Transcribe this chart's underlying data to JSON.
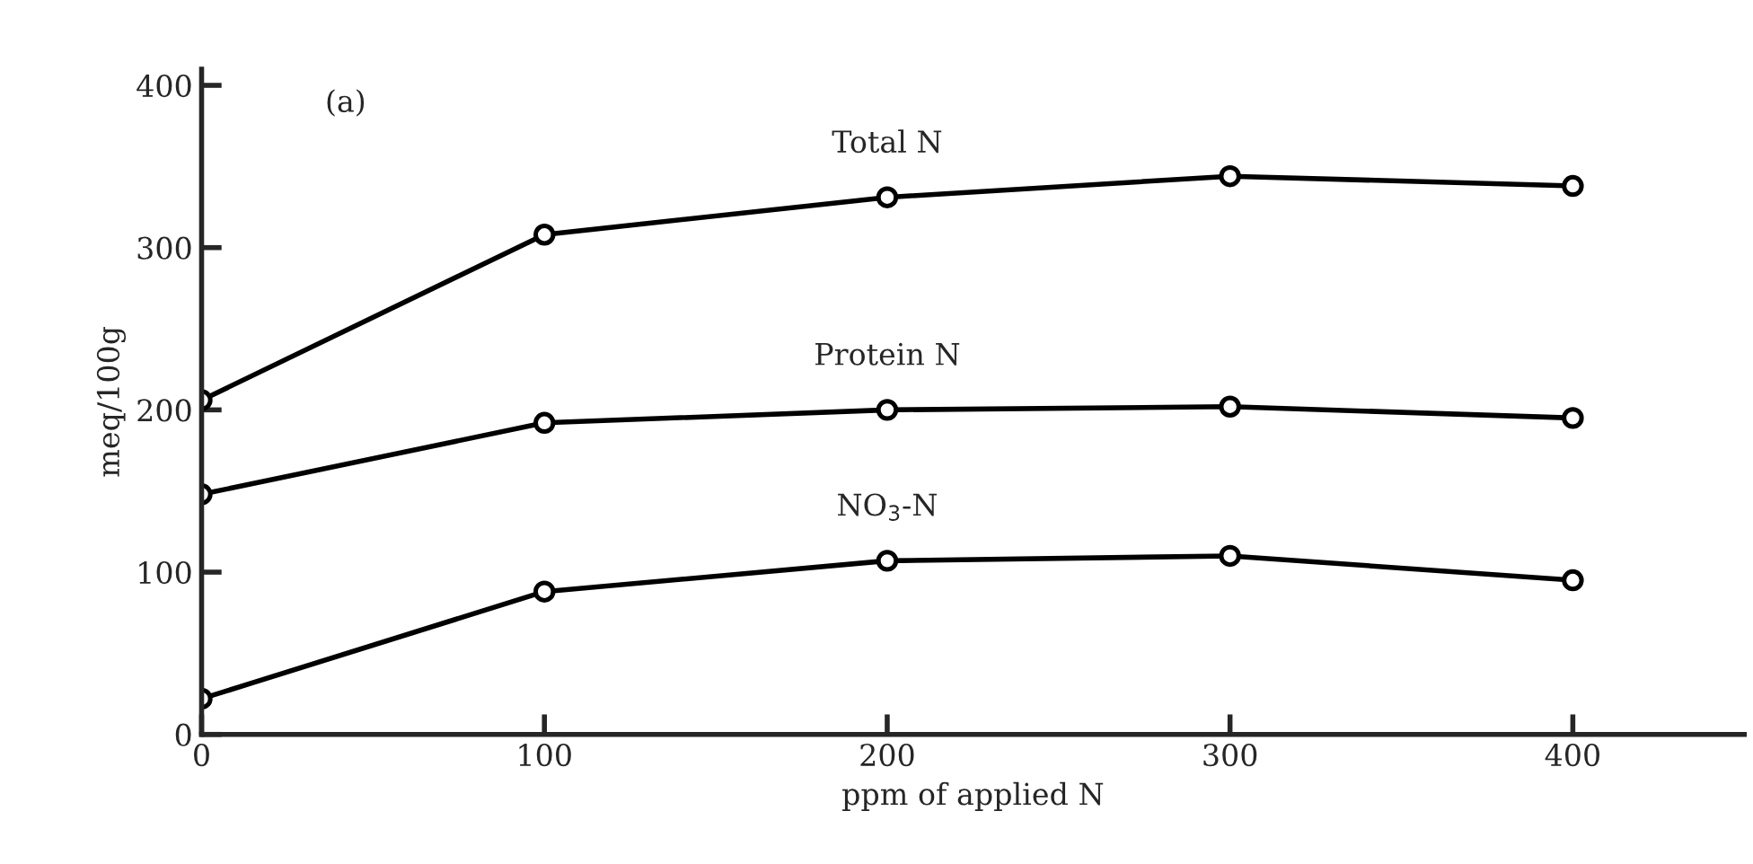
{
  "chart_data": {
    "type": "line",
    "xlabel": "ppm of applied N",
    "ylabel": "meq/100g",
    "x": [
      0,
      100,
      200,
      300,
      400
    ],
    "series": [
      {
        "name": "Total N",
        "color": "#000000",
        "values": [
          206,
          308,
          331,
          344,
          338
        ]
      },
      {
        "name": "Protein N",
        "color": "#000000",
        "values": [
          148,
          192,
          200,
          202,
          195
        ]
      },
      {
        "name": "NO$_{3}$-N",
        "color": "#000000",
        "values": [
          22,
          88,
          107,
          110,
          95
        ]
      }
    ],
    "annotations": [
      "(a)"
    ],
    "xlim": [
      0,
      450
    ],
    "ylim": [
      0,
      410
    ],
    "xticks": [
      0,
      100,
      200,
      300,
      400
    ],
    "yticks": [
      0,
      100,
      200,
      300,
      400
    ],
    "marker": "circle",
    "line_style": "solid",
    "grid": false,
    "legend": false
  }
}
